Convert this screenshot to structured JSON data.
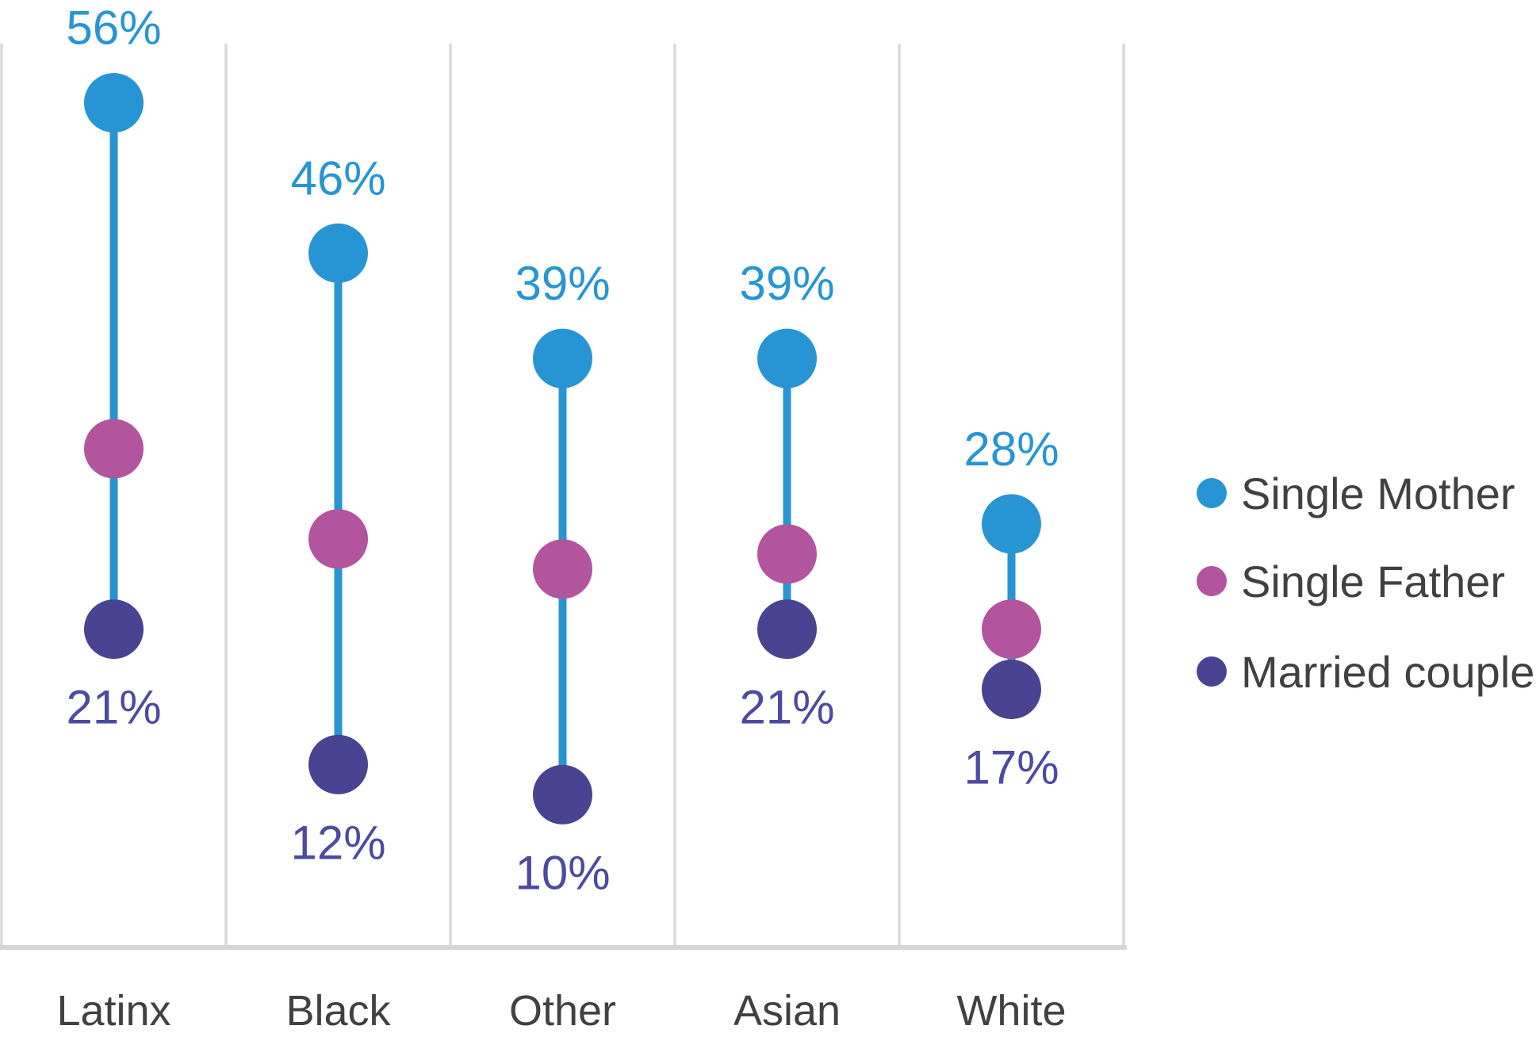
{
  "chart_data": {
    "type": "dumbbell-dot",
    "title": "",
    "categories": [
      "Latinx",
      "Black",
      "Other",
      "Asian",
      "White"
    ],
    "series": [
      {
        "name": "Single Mother",
        "color": "#2795D3",
        "values": [
          56,
          46,
          39,
          39,
          28
        ],
        "data_labels": "above"
      },
      {
        "name": "Single Father",
        "color": "#B3549F",
        "values": [
          33,
          27,
          25,
          26,
          21
        ],
        "data_labels": "none"
      },
      {
        "name": "Married couple",
        "color": "#4A4392",
        "values": [
          21,
          12,
          10,
          21,
          17
        ],
        "data_labels": "below"
      }
    ],
    "value_suffix": "%",
    "ylim": [
      0,
      60
    ],
    "grid": "vertical-category-separators",
    "gridline_color": "#D9D9D9",
    "baseline_color": "#D7D7D7",
    "connector_color": "#2795D3",
    "label_color_above": "#2795D3",
    "label_color_below": "#4D4AA1",
    "category_label_color": "#414141",
    "legend_position": "right",
    "legend_text_color": "#414141",
    "top_labels": [
      "56%",
      "46%",
      "39%",
      "39%",
      "28%"
    ],
    "bottom_labels": [
      "21%",
      "12%",
      "10%",
      "21%",
      "17%"
    ]
  }
}
